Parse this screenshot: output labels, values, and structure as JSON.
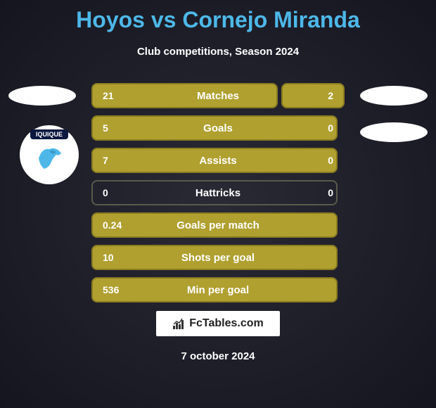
{
  "title": "Hoyos vs Cornejo Miranda",
  "subtitle": "Club competitions, Season 2024",
  "badge": {
    "text": "IQUIQUE",
    "bg_color": "#0b1940",
    "dragon_color": "#4db8e8"
  },
  "colors": {
    "title_color": "#4db8e8",
    "text_color": "#ffffff",
    "bar_fill": "#b0a030",
    "bar_border": "#8a7c20",
    "empty_fill": "transparent",
    "empty_border": "#5a5a4a"
  },
  "stats": [
    {
      "label": "Matches",
      "left_value": "21",
      "right_value": "2",
      "left_width": 265,
      "right_width": 90,
      "left_filled": true,
      "right_filled": true
    },
    {
      "label": "Goals",
      "left_value": "5",
      "right_value": "0",
      "left_width": 350,
      "right_width": 0,
      "left_filled": true,
      "right_filled": false
    },
    {
      "label": "Assists",
      "left_value": "7",
      "right_value": "0",
      "left_width": 350,
      "right_width": 0,
      "left_filled": true,
      "right_filled": false
    },
    {
      "label": "Hattricks",
      "left_value": "0",
      "right_value": "0",
      "left_width": 0,
      "right_width": 0,
      "left_filled": false,
      "right_filled": false
    },
    {
      "label": "Goals per match",
      "left_value": "0.24",
      "right_value": "",
      "left_width": 350,
      "right_width": 0,
      "left_filled": true,
      "right_filled": false
    },
    {
      "label": "Shots per goal",
      "left_value": "10",
      "right_value": "",
      "left_width": 350,
      "right_width": 0,
      "left_filled": true,
      "right_filled": false
    },
    {
      "label": "Min per goal",
      "left_value": "536",
      "right_value": "",
      "left_width": 350,
      "right_width": 0,
      "left_filled": true,
      "right_filled": false
    }
  ],
  "logo_text": "FcTables.com",
  "date": "7 october 2024"
}
